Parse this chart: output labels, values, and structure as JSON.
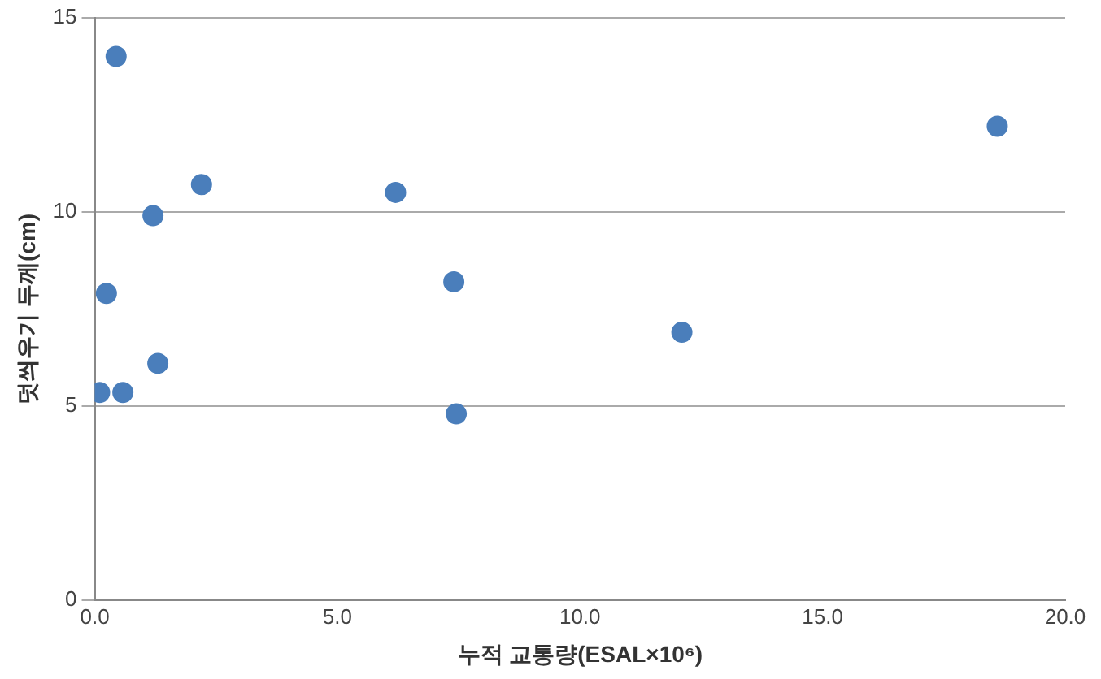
{
  "chart_data": {
    "type": "scatter",
    "xlabel": "누적 교통량(ESAL×10⁶)",
    "ylabel": "덧씌우기 두께(cm)",
    "x": [
      0.1,
      0.58,
      0.24,
      0.44,
      1.2,
      1.3,
      2.2,
      6.2,
      7.4,
      7.45,
      12.1,
      18.6
    ],
    "series": [
      {
        "color": "#4a7ebb",
        "values": [
          5.35,
          5.35,
          7.9,
          14.0,
          9.9,
          6.1,
          10.7,
          10.5,
          8.2,
          4.8,
          6.9,
          12.2
        ]
      }
    ],
    "xlim": [
      0,
      20
    ],
    "xticks": [
      {
        "value": 0,
        "label": "0.0"
      },
      {
        "value": 5,
        "label": "5.0"
      },
      {
        "value": 10,
        "label": "10.0"
      },
      {
        "value": 15,
        "label": "15.0"
      },
      {
        "value": 20,
        "label": "20.0"
      }
    ],
    "ylim": [
      0,
      15
    ],
    "yticks": [
      0,
      5,
      10,
      15
    ],
    "grid": "y",
    "legend": false,
    "marker": "circle"
  }
}
